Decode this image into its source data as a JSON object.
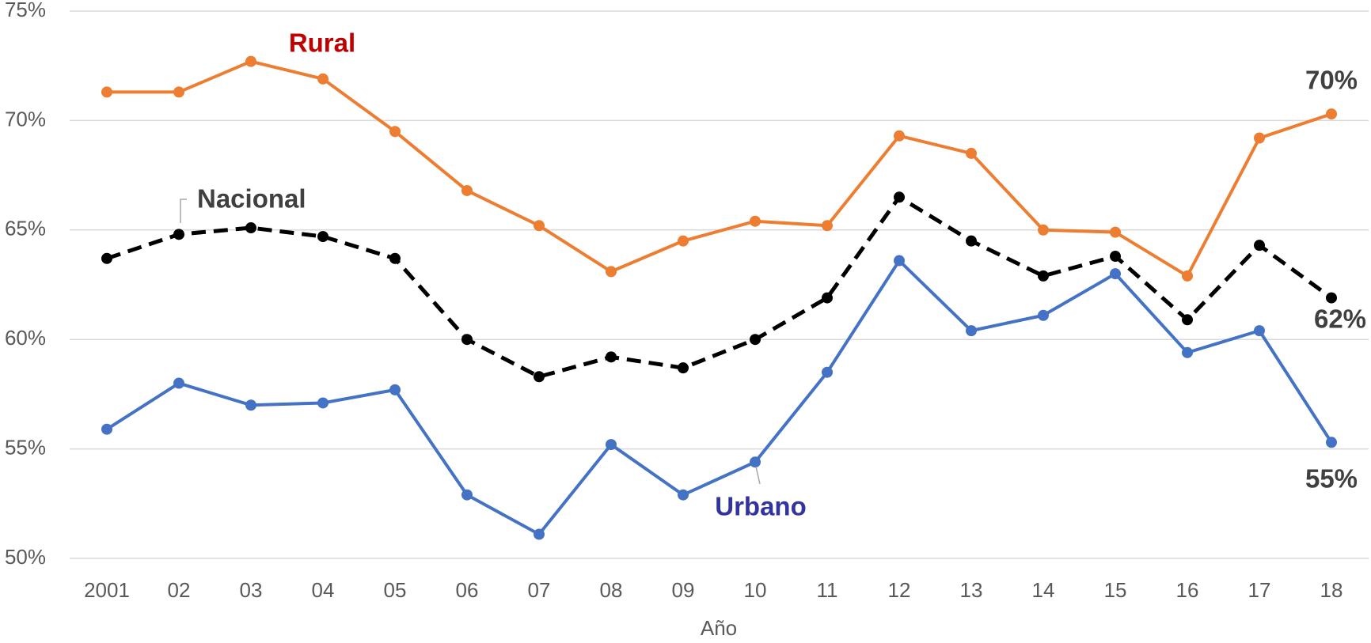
{
  "chart_data": {
    "type": "line",
    "x_label": "Año",
    "categories": [
      "2001",
      "02",
      "03",
      "04",
      "05",
      "06",
      "07",
      "08",
      "09",
      "10",
      "11",
      "12",
      "13",
      "14",
      "15",
      "16",
      "17",
      "18"
    ],
    "ylim": [
      50,
      75
    ],
    "yticks": [
      {
        "value": 50,
        "label": "50%"
      },
      {
        "value": 55,
        "label": "55%"
      },
      {
        "value": 60,
        "label": "60%"
      },
      {
        "value": 65,
        "label": "65%"
      },
      {
        "value": 70,
        "label": "70%"
      },
      {
        "value": 75,
        "label": "75%"
      }
    ],
    "grid": true,
    "series": [
      {
        "name": "Rural",
        "color": "#ed7d31",
        "label_color": "#c00000",
        "line_style": "solid",
        "values": [
          71.3,
          71.3,
          72.7,
          71.9,
          69.5,
          66.8,
          65.2,
          63.1,
          64.5,
          65.4,
          65.2,
          69.3,
          68.5,
          65.0,
          64.9,
          62.9,
          69.2,
          70.3
        ],
        "value_labels": [
          null,
          null,
          null,
          null,
          null,
          null,
          null,
          null,
          null,
          null,
          null,
          null,
          null,
          null,
          null,
          null,
          null,
          "70%"
        ]
      },
      {
        "name": "Nacional",
        "color": "#000000",
        "label_color": "#404040",
        "line_style": "dashed",
        "values": [
          63.7,
          64.8,
          65.1,
          64.7,
          63.7,
          60.0,
          58.3,
          59.2,
          58.7,
          60.0,
          61.9,
          66.5,
          64.5,
          62.9,
          63.8,
          60.9,
          64.3,
          61.9
        ],
        "value_labels": [
          null,
          null,
          null,
          null,
          null,
          null,
          null,
          null,
          null,
          null,
          null,
          null,
          null,
          null,
          null,
          null,
          null,
          "62%"
        ]
      },
      {
        "name": "Urbano",
        "color": "#4472c4",
        "label_color": "#3333a0",
        "line_style": "solid",
        "values": [
          55.9,
          58.0,
          57.0,
          57.1,
          57.7,
          52.9,
          51.1,
          55.2,
          52.9,
          54.4,
          58.5,
          63.6,
          60.4,
          61.1,
          63.0,
          59.4,
          60.4,
          55.3
        ],
        "value_labels": [
          null,
          null,
          null,
          null,
          null,
          null,
          null,
          null,
          null,
          null,
          null,
          null,
          null,
          null,
          null,
          null,
          null,
          "55%"
        ]
      }
    ]
  }
}
